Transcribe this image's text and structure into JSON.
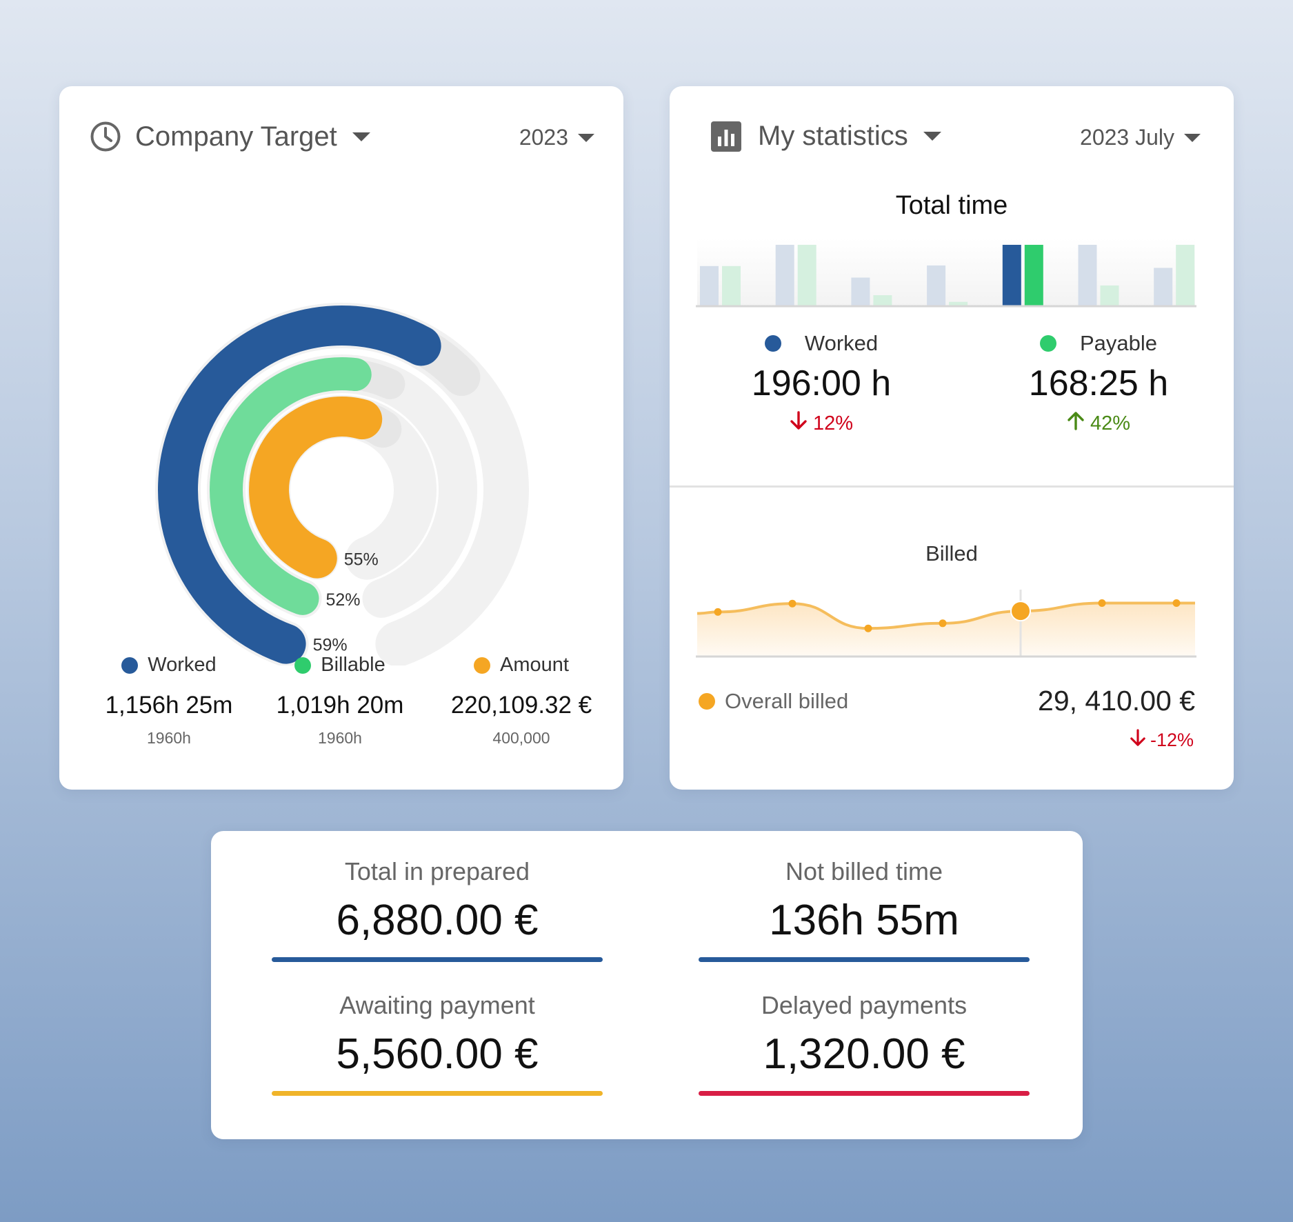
{
  "company_target": {
    "title": "Company Target",
    "period": "2023",
    "icon": "clock-icon",
    "rings": [
      {
        "name": "Worked",
        "percent": 59,
        "label": "59%",
        "color": "#275a9a"
      },
      {
        "name": "Billable",
        "percent": 52,
        "label": "52%",
        "color": "#6fdc9a"
      },
      {
        "name": "Amount",
        "percent": 55,
        "label": "55%",
        "color": "#f5a623"
      }
    ],
    "legend": [
      {
        "label": "Worked",
        "value": "1,156h 25m",
        "target": "1960h",
        "color": "#275a9a"
      },
      {
        "label": "Billable",
        "value": "1,019h 20m",
        "target": "1960h",
        "color": "#2fcc6d"
      },
      {
        "label": "Amount",
        "value": "220,109.32 €",
        "target": "400,000",
        "color": "#f5a623"
      }
    ]
  },
  "my_statistics": {
    "title": "My statistics",
    "period": "2023 July",
    "icon": "bar-chart-icon",
    "total_time_title": "Total time",
    "total_time_bars": [
      {
        "worked": 0.65,
        "payable": 0.65
      },
      {
        "worked": 1.0,
        "payable": 1.0
      },
      {
        "worked": 0.46,
        "payable": 0.17
      },
      {
        "worked": 0.66,
        "payable": 0.06
      },
      {
        "worked": 1.0,
        "payable": 1.0
      },
      {
        "worked": 1.0,
        "payable": 0.33
      },
      {
        "worked": 0.62,
        "payable": 1.0
      }
    ],
    "highlight_index": 4,
    "colors": {
      "worked": "#275a9a",
      "payable": "#2fcc6d",
      "worked_faded": "#d5deea",
      "payable_faded": "#d5f0df",
      "billed": "#f5a623"
    },
    "worked": {
      "label": "Worked",
      "value": "196:00 h",
      "change": "12%",
      "direction": "down",
      "change_color": "#d0021b"
    },
    "payable": {
      "label": "Payable",
      "value": "168:25 h",
      "change": "42%",
      "direction": "up",
      "change_color": "#4a8a16"
    },
    "billed_title": "Billed",
    "billed_points": [
      0.67,
      0.85,
      0.32,
      0.43,
      0.69,
      0.86,
      0.86
    ],
    "billed_highlight_index": 4,
    "overall_label": "Overall billed",
    "overall_value": "29, 410.00 €",
    "overall_change": "-12%",
    "overall_change_color": "#d0021b"
  },
  "summary": [
    {
      "label": "Total in prepared",
      "value": "6,880.00 €",
      "color": "#275a9a"
    },
    {
      "label": "Not billed time",
      "value": "136h 55m",
      "color": "#275a9a"
    },
    {
      "label": "Awaiting payment",
      "value": "5,560.00 €",
      "color": "#f0b42a"
    },
    {
      "label": "Delayed payments",
      "value": "1,320.00 €",
      "color": "#d81e45"
    }
  ]
}
